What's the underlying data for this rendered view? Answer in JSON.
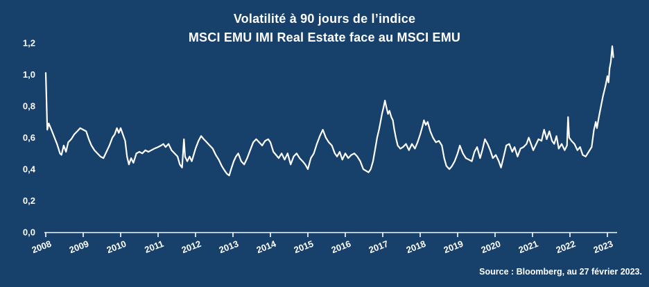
{
  "chart": {
    "title_line1": "Volatilité à 90 jours de l’indice",
    "title_line2": "MSCI EMU IMI Real Estate face au MSCI EMU",
    "source": "Source : Bloomberg, au 27 février 2023.",
    "colors": {
      "background": "#17406B",
      "text": "#FFFFFF",
      "axis": "#FFFFFF",
      "line": "#FFFFFF"
    }
  },
  "chart_data": {
    "type": "line",
    "title": "Volatilité à 90 jours de l’indice MSCI EMU IMI Real Estate face au MSCI EMU",
    "xlabel": "",
    "ylabel": "",
    "xlim": [
      2008,
      2023.3
    ],
    "ylim": [
      0.0,
      1.2
    ],
    "grid": false,
    "legend_position": "none",
    "x_ticks": [
      {
        "label": "2008",
        "value": 2008
      },
      {
        "label": "2009",
        "value": 2009
      },
      {
        "label": "2010",
        "value": 2010
      },
      {
        "label": "2011",
        "value": 2011
      },
      {
        "label": "2012",
        "value": 2012
      },
      {
        "label": "2013",
        "value": 2013
      },
      {
        "label": "2014",
        "value": 2014
      },
      {
        "label": "2015",
        "value": 2015
      },
      {
        "label": "2016",
        "value": 2016
      },
      {
        "label": "2017",
        "value": 2017
      },
      {
        "label": "2018",
        "value": 2018
      },
      {
        "label": "2019",
        "value": 2019
      },
      {
        "label": "2020",
        "value": 2020
      },
      {
        "label": "2021",
        "value": 2021
      },
      {
        "label": "2022",
        "value": 2022
      },
      {
        "label": "2023",
        "value": 2023
      }
    ],
    "y_ticks": [
      {
        "label": "0,0",
        "value": 0.0
      },
      {
        "label": "0,2",
        "value": 0.2
      },
      {
        "label": "0,4",
        "value": 0.4
      },
      {
        "label": "0,6",
        "value": 0.6
      },
      {
        "label": "0,8",
        "value": 0.8
      },
      {
        "label": "1,0",
        "value": 1.0
      },
      {
        "label": "1,2",
        "value": 1.2
      }
    ],
    "series": [
      {
        "name": "Volatilité à 90 jours de l’indice MSCI EMU IMI Real Estate face au MSCI EMU",
        "points": [
          [
            2008.0,
            1.01
          ],
          [
            2008.04,
            0.65
          ],
          [
            2008.08,
            0.69
          ],
          [
            2008.15,
            0.65
          ],
          [
            2008.2,
            0.62
          ],
          [
            2008.25,
            0.59
          ],
          [
            2008.3,
            0.56
          ],
          [
            2008.34,
            0.53
          ],
          [
            2008.38,
            0.5
          ],
          [
            2008.42,
            0.49
          ],
          [
            2008.48,
            0.55
          ],
          [
            2008.54,
            0.51
          ],
          [
            2008.6,
            0.57
          ],
          [
            2008.68,
            0.59
          ],
          [
            2008.76,
            0.62
          ],
          [
            2008.84,
            0.64
          ],
          [
            2008.92,
            0.66
          ],
          [
            2009.0,
            0.65
          ],
          [
            2009.08,
            0.64
          ],
          [
            2009.15,
            0.59
          ],
          [
            2009.22,
            0.55
          ],
          [
            2009.3,
            0.52
          ],
          [
            2009.38,
            0.5
          ],
          [
            2009.46,
            0.48
          ],
          [
            2009.54,
            0.47
          ],
          [
            2009.62,
            0.51
          ],
          [
            2009.7,
            0.55
          ],
          [
            2009.78,
            0.6
          ],
          [
            2009.84,
            0.62
          ],
          [
            2009.9,
            0.66
          ],
          [
            2009.95,
            0.63
          ],
          [
            2010.0,
            0.66
          ],
          [
            2010.06,
            0.62
          ],
          [
            2010.12,
            0.58
          ],
          [
            2010.17,
            0.48
          ],
          [
            2010.22,
            0.43
          ],
          [
            2010.28,
            0.47
          ],
          [
            2010.34,
            0.44
          ],
          [
            2010.42,
            0.5
          ],
          [
            2010.5,
            0.51
          ],
          [
            2010.58,
            0.5
          ],
          [
            2010.66,
            0.52
          ],
          [
            2010.74,
            0.51
          ],
          [
            2010.82,
            0.52
          ],
          [
            2010.9,
            0.53
          ],
          [
            2011.0,
            0.54
          ],
          [
            2011.08,
            0.55
          ],
          [
            2011.14,
            0.56
          ],
          [
            2011.2,
            0.54
          ],
          [
            2011.28,
            0.56
          ],
          [
            2011.36,
            0.52
          ],
          [
            2011.44,
            0.5
          ],
          [
            2011.52,
            0.48
          ],
          [
            2011.58,
            0.43
          ],
          [
            2011.64,
            0.41
          ],
          [
            2011.69,
            0.59
          ],
          [
            2011.72,
            0.48
          ],
          [
            2011.78,
            0.45
          ],
          [
            2011.84,
            0.48
          ],
          [
            2011.9,
            0.45
          ],
          [
            2011.95,
            0.49
          ],
          [
            2012.0,
            0.53
          ],
          [
            2012.08,
            0.58
          ],
          [
            2012.15,
            0.61
          ],
          [
            2012.22,
            0.59
          ],
          [
            2012.3,
            0.57
          ],
          [
            2012.38,
            0.55
          ],
          [
            2012.46,
            0.53
          ],
          [
            2012.54,
            0.49
          ],
          [
            2012.62,
            0.46
          ],
          [
            2012.7,
            0.42
          ],
          [
            2012.78,
            0.39
          ],
          [
            2012.84,
            0.37
          ],
          [
            2012.9,
            0.36
          ],
          [
            2012.95,
            0.4
          ],
          [
            2013.02,
            0.45
          ],
          [
            2013.08,
            0.48
          ],
          [
            2013.14,
            0.5
          ],
          [
            2013.22,
            0.45
          ],
          [
            2013.3,
            0.43
          ],
          [
            2013.38,
            0.47
          ],
          [
            2013.46,
            0.52
          ],
          [
            2013.54,
            0.57
          ],
          [
            2013.62,
            0.59
          ],
          [
            2013.7,
            0.57
          ],
          [
            2013.78,
            0.55
          ],
          [
            2013.86,
            0.58
          ],
          [
            2013.94,
            0.59
          ],
          [
            2014.0,
            0.57
          ],
          [
            2014.08,
            0.51
          ],
          [
            2014.15,
            0.49
          ],
          [
            2014.22,
            0.47
          ],
          [
            2014.3,
            0.5
          ],
          [
            2014.38,
            0.46
          ],
          [
            2014.46,
            0.5
          ],
          [
            2014.54,
            0.43
          ],
          [
            2014.62,
            0.48
          ],
          [
            2014.7,
            0.5
          ],
          [
            2014.78,
            0.47
          ],
          [
            2014.86,
            0.45
          ],
          [
            2014.93,
            0.43
          ],
          [
            2015.0,
            0.4
          ],
          [
            2015.08,
            0.47
          ],
          [
            2015.16,
            0.5
          ],
          [
            2015.24,
            0.56
          ],
          [
            2015.32,
            0.61
          ],
          [
            2015.4,
            0.65
          ],
          [
            2015.48,
            0.6
          ],
          [
            2015.56,
            0.57
          ],
          [
            2015.64,
            0.55
          ],
          [
            2015.72,
            0.5
          ],
          [
            2015.78,
            0.48
          ],
          [
            2015.85,
            0.51
          ],
          [
            2015.92,
            0.46
          ],
          [
            2016.0,
            0.5
          ],
          [
            2016.08,
            0.47
          ],
          [
            2016.16,
            0.49
          ],
          [
            2016.24,
            0.5
          ],
          [
            2016.32,
            0.48
          ],
          [
            2016.4,
            0.45
          ],
          [
            2016.48,
            0.4
          ],
          [
            2016.55,
            0.39
          ],
          [
            2016.62,
            0.38
          ],
          [
            2016.68,
            0.4
          ],
          [
            2016.74,
            0.45
          ],
          [
            2016.8,
            0.53
          ],
          [
            2016.85,
            0.6
          ],
          [
            2016.9,
            0.65
          ],
          [
            2016.94,
            0.7
          ],
          [
            2016.98,
            0.75
          ],
          [
            2017.02,
            0.79
          ],
          [
            2017.06,
            0.835
          ],
          [
            2017.1,
            0.79
          ],
          [
            2017.14,
            0.75
          ],
          [
            2017.18,
            0.77
          ],
          [
            2017.23,
            0.73
          ],
          [
            2017.27,
            0.71
          ],
          [
            2017.31,
            0.65
          ],
          [
            2017.35,
            0.6
          ],
          [
            2017.4,
            0.55
          ],
          [
            2017.47,
            0.53
          ],
          [
            2017.54,
            0.54
          ],
          [
            2017.62,
            0.56
          ],
          [
            2017.7,
            0.52
          ],
          [
            2017.78,
            0.56
          ],
          [
            2017.86,
            0.53
          ],
          [
            2017.93,
            0.57
          ],
          [
            2018.0,
            0.62
          ],
          [
            2018.06,
            0.67
          ],
          [
            2018.1,
            0.71
          ],
          [
            2018.15,
            0.68
          ],
          [
            2018.2,
            0.7
          ],
          [
            2018.27,
            0.64
          ],
          [
            2018.34,
            0.6
          ],
          [
            2018.42,
            0.57
          ],
          [
            2018.5,
            0.58
          ],
          [
            2018.58,
            0.55
          ],
          [
            2018.64,
            0.47
          ],
          [
            2018.7,
            0.42
          ],
          [
            2018.78,
            0.4
          ],
          [
            2018.85,
            0.42
          ],
          [
            2018.92,
            0.45
          ],
          [
            2019.0,
            0.5
          ],
          [
            2019.06,
            0.55
          ],
          [
            2019.14,
            0.5
          ],
          [
            2019.22,
            0.47
          ],
          [
            2019.3,
            0.46
          ],
          [
            2019.38,
            0.45
          ],
          [
            2019.45,
            0.51
          ],
          [
            2019.52,
            0.54
          ],
          [
            2019.6,
            0.47
          ],
          [
            2019.66,
            0.52
          ],
          [
            2019.73,
            0.59
          ],
          [
            2019.8,
            0.56
          ],
          [
            2019.87,
            0.52
          ],
          [
            2019.94,
            0.47
          ],
          [
            2020.02,
            0.49
          ],
          [
            2020.1,
            0.45
          ],
          [
            2020.16,
            0.41
          ],
          [
            2020.24,
            0.49
          ],
          [
            2020.3,
            0.55
          ],
          [
            2020.38,
            0.56
          ],
          [
            2020.46,
            0.51
          ],
          [
            2020.52,
            0.54
          ],
          [
            2020.6,
            0.48
          ],
          [
            2020.68,
            0.53
          ],
          [
            2020.76,
            0.54
          ],
          [
            2020.84,
            0.56
          ],
          [
            2020.9,
            0.6
          ],
          [
            2020.96,
            0.56
          ],
          [
            2021.02,
            0.52
          ],
          [
            2021.1,
            0.56
          ],
          [
            2021.16,
            0.59
          ],
          [
            2021.24,
            0.58
          ],
          [
            2021.31,
            0.65
          ],
          [
            2021.38,
            0.59
          ],
          [
            2021.45,
            0.64
          ],
          [
            2021.52,
            0.58
          ],
          [
            2021.58,
            0.56
          ],
          [
            2021.64,
            0.61
          ],
          [
            2021.7,
            0.53
          ],
          [
            2021.78,
            0.56
          ],
          [
            2021.86,
            0.52
          ],
          [
            2021.92,
            0.55
          ],
          [
            2021.95,
            0.73
          ],
          [
            2021.98,
            0.6
          ],
          [
            2022.04,
            0.58
          ],
          [
            2022.12,
            0.56
          ],
          [
            2022.2,
            0.52
          ],
          [
            2022.27,
            0.54
          ],
          [
            2022.34,
            0.49
          ],
          [
            2022.42,
            0.48
          ],
          [
            2022.5,
            0.51
          ],
          [
            2022.58,
            0.54
          ],
          [
            2022.64,
            0.65
          ],
          [
            2022.69,
            0.7
          ],
          [
            2022.72,
            0.66
          ],
          [
            2022.78,
            0.74
          ],
          [
            2022.83,
            0.8
          ],
          [
            2022.88,
            0.86
          ],
          [
            2022.92,
            0.9
          ],
          [
            2022.96,
            0.94
          ],
          [
            2023.0,
            0.99
          ],
          [
            2023.03,
            0.95
          ],
          [
            2023.06,
            1.04
          ],
          [
            2023.09,
            1.08
          ],
          [
            2023.13,
            1.18
          ],
          [
            2023.16,
            1.11
          ]
        ]
      }
    ]
  }
}
